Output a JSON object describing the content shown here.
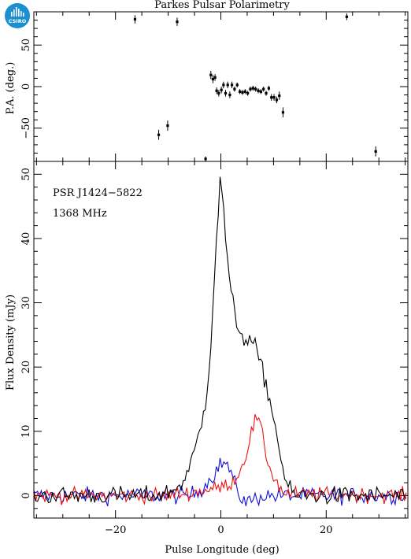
{
  "title": "Parkes Pulsar Polarimetry",
  "logo": {
    "text": "CSIRO",
    "color": "#1b8fd0"
  },
  "annotations": {
    "pulsar": "PSR J1424−5822",
    "frequency": "1368 MHz"
  },
  "colors": {
    "total": "#000000",
    "linear": "#ee1111",
    "circular": "#1111dd"
  },
  "chart_data": [
    {
      "type": "scatter",
      "panel": "position-angle",
      "ylabel": "P.A. (deg.)",
      "xlim": [
        -35.5,
        35.5
      ],
      "ylim": [
        -90,
        90
      ],
      "yticks": [
        -50,
        0,
        50
      ],
      "xticks": [
        -20,
        0,
        20
      ],
      "points": [
        {
          "x": -16.3,
          "y": 81,
          "err": 5
        },
        {
          "x": -11.8,
          "y": -58,
          "err": 6
        },
        {
          "x": -10.1,
          "y": -47,
          "err": 6
        },
        {
          "x": -8.3,
          "y": 78,
          "err": 5
        },
        {
          "x": -2.9,
          "y": -87,
          "err": 3
        },
        {
          "x": -1.9,
          "y": 14,
          "err": 5
        },
        {
          "x": -1.5,
          "y": 9,
          "err": 5
        },
        {
          "x": -1.1,
          "y": 11,
          "err": 4
        },
        {
          "x": -0.8,
          "y": -5,
          "err": 4
        },
        {
          "x": -0.4,
          "y": -8,
          "err": 4
        },
        {
          "x": 0.1,
          "y": -4,
          "err": 4
        },
        {
          "x": 0.5,
          "y": 2,
          "err": 4
        },
        {
          "x": 0.9,
          "y": -8,
          "err": 4
        },
        {
          "x": 1.3,
          "y": 2,
          "err": 4
        },
        {
          "x": 1.7,
          "y": -10,
          "err": 4
        },
        {
          "x": 2.1,
          "y": 2,
          "err": 4
        },
        {
          "x": 2.6,
          "y": -3,
          "err": 3
        },
        {
          "x": 3.1,
          "y": 2,
          "err": 3
        },
        {
          "x": 3.6,
          "y": -6,
          "err": 3
        },
        {
          "x": 4.1,
          "y": -7,
          "err": 3
        },
        {
          "x": 4.6,
          "y": -6,
          "err": 3
        },
        {
          "x": 5.1,
          "y": -8,
          "err": 3
        },
        {
          "x": 5.6,
          "y": -3,
          "err": 3
        },
        {
          "x": 6.1,
          "y": -2,
          "err": 3
        },
        {
          "x": 6.6,
          "y": -3,
          "err": 3
        },
        {
          "x": 7.1,
          "y": -5,
          "err": 3
        },
        {
          "x": 7.6,
          "y": -6,
          "err": 3
        },
        {
          "x": 8.1,
          "y": -3,
          "err": 3
        },
        {
          "x": 8.6,
          "y": -8,
          "err": 3
        },
        {
          "x": 9.1,
          "y": -2,
          "err": 3
        },
        {
          "x": 9.6,
          "y": -13,
          "err": 4
        },
        {
          "x": 10.1,
          "y": -13,
          "err": 4
        },
        {
          "x": 10.6,
          "y": -16,
          "err": 4
        },
        {
          "x": 11.1,
          "y": -11,
          "err": 5
        },
        {
          "x": 11.8,
          "y": -31,
          "err": 6
        },
        {
          "x": 23.9,
          "y": 84,
          "err": 4
        },
        {
          "x": 29.4,
          "y": -78,
          "err": 6
        }
      ]
    },
    {
      "type": "line",
      "panel": "profile",
      "xlabel": "Pulse Longitude (deg)",
      "ylabel": "Flux Density (mJy)",
      "xlim": [
        -35.5,
        35.5
      ],
      "ylim": [
        -3.5,
        52
      ],
      "yticks": [
        0,
        10,
        20,
        30,
        40,
        50
      ],
      "xticks": [
        -20,
        0,
        20
      ],
      "series": [
        {
          "key": "total",
          "profile": [
            [
              -35.5,
              0
            ],
            [
              -12,
              0
            ],
            [
              -9,
              0.8
            ],
            [
              -8,
              1.5
            ],
            [
              -7,
              2.4
            ],
            [
              -6,
              4
            ],
            [
              -5,
              7
            ],
            [
              -4,
              10
            ],
            [
              -3,
              14
            ],
            [
              -2,
              22
            ],
            [
              -1.5,
              30
            ],
            [
              -1,
              38
            ],
            [
              -0.5,
              44
            ],
            [
              0,
              49.6
            ],
            [
              0.5,
              45
            ],
            [
              1,
              39
            ],
            [
              1.5,
              34
            ],
            [
              2,
              31
            ],
            [
              3,
              27
            ],
            [
              4,
              25
            ],
            [
              5,
              24
            ],
            [
              6,
              24
            ],
            [
              7,
              22
            ],
            [
              8,
              19
            ],
            [
              9,
              16
            ],
            [
              10,
              12
            ],
            [
              11,
              8
            ],
            [
              12,
              3
            ],
            [
              13,
              1
            ],
            [
              14,
              0
            ],
            [
              35.5,
              0
            ]
          ],
          "noise": 1.0
        },
        {
          "key": "linear",
          "profile": [
            [
              -35.5,
              0
            ],
            [
              -10,
              0
            ],
            [
              -5,
              0.5
            ],
            [
              0,
              1.3
            ],
            [
              2,
              2
            ],
            [
              3.5,
              3.5
            ],
            [
              5,
              7
            ],
            [
              6,
              10.5
            ],
            [
              6.8,
              12.2
            ],
            [
              7.5,
              11
            ],
            [
              8,
              8.5
            ],
            [
              9,
              5
            ],
            [
              10,
              3
            ],
            [
              11,
              1.5
            ],
            [
              12,
              0.3
            ],
            [
              35.5,
              0
            ]
          ],
          "noise": 0.8
        },
        {
          "key": "circular",
          "profile": [
            [
              -35.5,
              0
            ],
            [
              -6,
              0
            ],
            [
              -4,
              0.8
            ],
            [
              -2,
              2.5
            ],
            [
              -0.5,
              4.5
            ],
            [
              0.5,
              5.2
            ],
            [
              1.5,
              4.5
            ],
            [
              2.5,
              2
            ],
            [
              3.5,
              0
            ],
            [
              5,
              -1
            ],
            [
              6.5,
              -0.5
            ],
            [
              8,
              0
            ],
            [
              35.5,
              0
            ]
          ],
          "noise": 0.9
        }
      ]
    }
  ]
}
